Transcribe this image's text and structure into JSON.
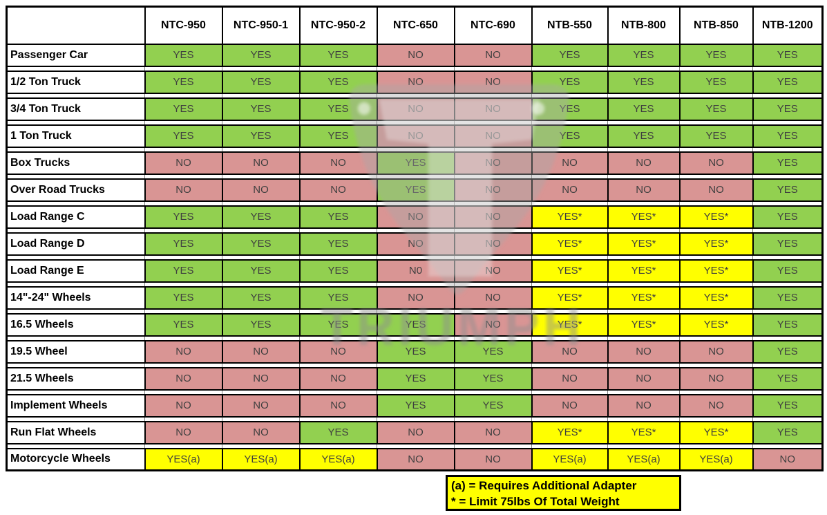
{
  "chart_data": {
    "type": "table",
    "title": "Tire changer model compatibility chart",
    "columns": [
      "NTC-950",
      "NTC-950-1",
      "NTC-950-2",
      "NTC-650",
      "NTC-690",
      "NTB-550",
      "NTB-800",
      "NTB-850",
      "NTB-1200"
    ],
    "corner_label": "",
    "rows": [
      {
        "label": "Passenger Car",
        "values": [
          "YES",
          "YES",
          "YES",
          "NO",
          "NO",
          "YES",
          "YES",
          "YES",
          "YES"
        ]
      },
      {
        "label": "1/2 Ton Truck",
        "values": [
          "YES",
          "YES",
          "YES",
          "NO",
          "NO",
          "YES",
          "YES",
          "YES",
          "YES"
        ]
      },
      {
        "label": "3/4 Ton Truck",
        "values": [
          "YES",
          "YES",
          "YES",
          "NO",
          "NO",
          "YES",
          "YES",
          "YES",
          "YES"
        ]
      },
      {
        "label": "1 Ton Truck",
        "values": [
          "YES",
          "YES",
          "YES",
          "NO",
          "NO",
          "YES",
          "YES",
          "YES",
          "YES"
        ]
      },
      {
        "label": "Box Trucks",
        "values": [
          "NO",
          "NO",
          "NO",
          "YES",
          "NO",
          "NO",
          "NO",
          "NO",
          "YES"
        ]
      },
      {
        "label": "Over Road Trucks",
        "values": [
          "NO",
          "NO",
          "NO",
          "YES",
          "NO",
          "NO",
          "NO",
          "NO",
          "YES"
        ]
      },
      {
        "label": "Load Range C",
        "values": [
          "YES",
          "YES",
          "YES",
          "NO",
          "NO",
          "YES*",
          "YES*",
          "YES*",
          "YES"
        ]
      },
      {
        "label": "Load Range D",
        "values": [
          "YES",
          "YES",
          "YES",
          "NO",
          "NO",
          "YES*",
          "YES*",
          "YES*",
          "YES"
        ]
      },
      {
        "label": "Load Range E",
        "values": [
          "YES",
          "YES",
          "YES",
          "N0",
          "NO",
          "YES*",
          "YES*",
          "YES*",
          "YES"
        ]
      },
      {
        "label": "14\"-24\" Wheels",
        "values": [
          "YES",
          "YES",
          "YES",
          "NO",
          "NO",
          "YES*",
          "YES*",
          "YES*",
          "YES"
        ]
      },
      {
        "label": "16.5 Wheels",
        "values": [
          "YES",
          "YES",
          "YES",
          "YES",
          "NO",
          "YES*",
          "YES*",
          "YES*",
          "YES"
        ]
      },
      {
        "label": "19.5 Wheel",
        "values": [
          "NO",
          "NO",
          "NO",
          "YES",
          "YES",
          "NO",
          "NO",
          "NO",
          "YES"
        ]
      },
      {
        "label": "21.5 Wheels",
        "values": [
          "NO",
          "NO",
          "NO",
          "YES",
          "YES",
          "NO",
          "NO",
          "NO",
          "YES"
        ]
      },
      {
        "label": "Implement Wheels",
        "values": [
          "NO",
          "NO",
          "NO",
          "YES",
          "YES",
          "NO",
          "NO",
          "NO",
          "YES"
        ]
      },
      {
        "label": "Run Flat Wheels",
        "values": [
          "NO",
          "NO",
          "YES",
          "NO",
          "NO",
          "YES*",
          "YES*",
          "YES*",
          "YES"
        ]
      },
      {
        "label": "Motorcycle Wheels",
        "values": [
          "YES(a)",
          "YES(a)",
          "YES(a)",
          "NO",
          "NO",
          "YES(a)",
          "YES(a)",
          "YES(a)",
          "NO"
        ]
      }
    ],
    "notes": [
      "(a) = Requires Additional Adapter",
      "* = Limit 75lbs Of Total Weight"
    ],
    "cell_color_coding": {
      "YES": "green",
      "NO": "red",
      "YES*": "yellow",
      "YES(a)": "yellow"
    },
    "legend_position": "bottom",
    "grid": true
  },
  "watermark": {
    "text": "TRIUMPH"
  },
  "colors": {
    "yes": "#92d050",
    "no": "#d99594",
    "conditional": "#ffff00",
    "value_text": "#3f3f3f",
    "border": "#000000"
  }
}
